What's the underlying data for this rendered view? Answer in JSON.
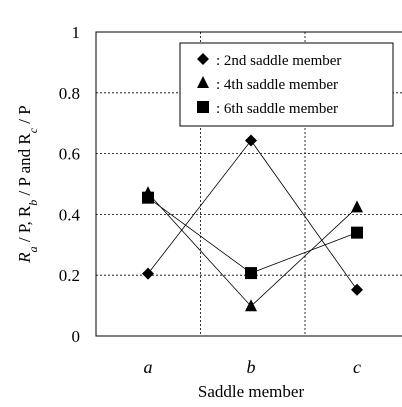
{
  "chart_data": {
    "type": "line",
    "categories": [
      "a",
      "b",
      "c"
    ],
    "ylim": [
      0,
      1
    ],
    "yticks": [
      "0",
      "0.2",
      "0.4",
      "0.6",
      "0.8",
      "1"
    ],
    "xlabel": "Saddle member",
    "ylabel_parts": [
      "R",
      "a",
      " / P,  R",
      "b",
      " / P and R",
      "c",
      " / P"
    ],
    "grid": "dashed",
    "legend_position": "top-right",
    "series": [
      {
        "name": "2nd saddle member",
        "legend_label": ":  2nd saddle member",
        "marker": "diamond",
        "values": [
          0.205,
          0.643,
          0.152
        ]
      },
      {
        "name": "4th saddle member",
        "legend_label": ":  4th saddle member",
        "marker": "triangle",
        "values": [
          0.47,
          0.098,
          0.423
        ]
      },
      {
        "name": "6th saddle member",
        "legend_label": ":  6th saddle member",
        "marker": "square",
        "values": [
          0.455,
          0.207,
          0.34
        ]
      }
    ],
    "colors": {
      "line": "#000000",
      "marker": "#000000",
      "grid": "#000000"
    }
  }
}
